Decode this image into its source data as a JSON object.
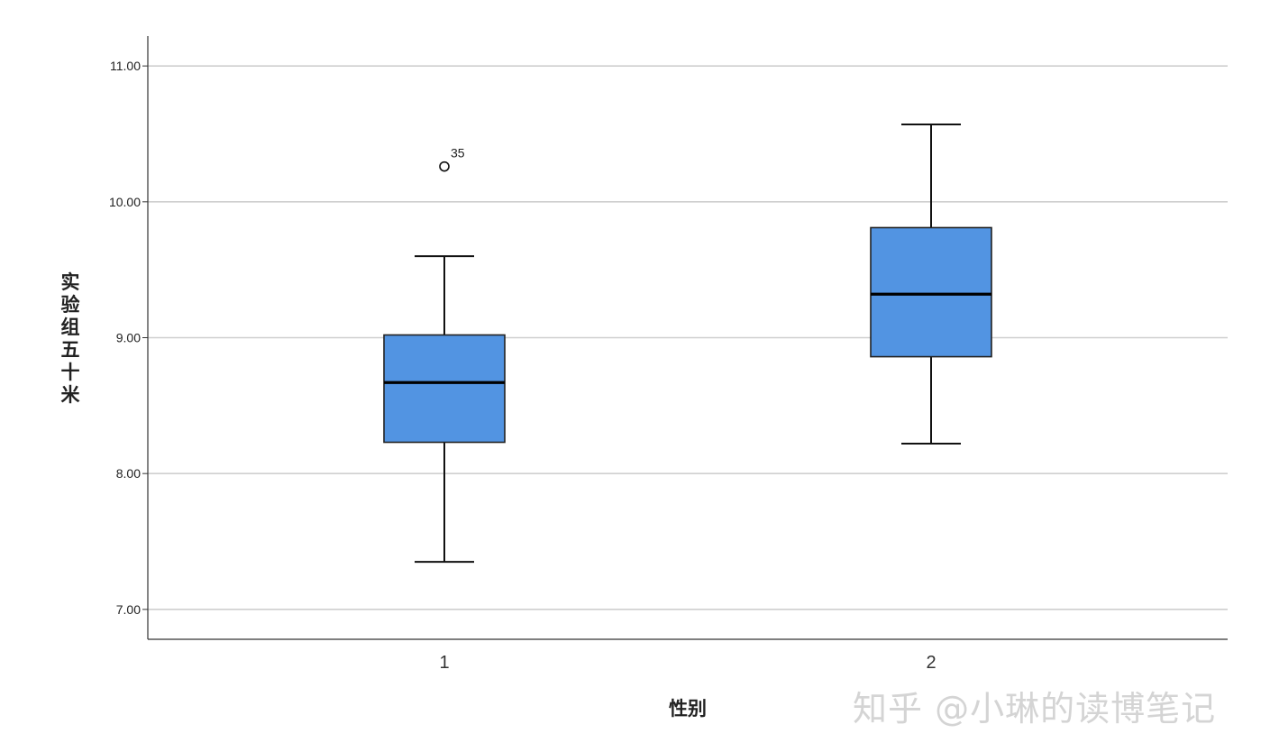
{
  "chart_data": {
    "type": "box",
    "xlabel": "性别",
    "ylabel": "实验组五十米",
    "ylim": [
      6.78,
      11.22
    ],
    "yticks": [
      7.0,
      8.0,
      9.0,
      10.0,
      11.0
    ],
    "ytick_labels": [
      "7.00",
      "8.00",
      "9.00",
      "10.00",
      "11.00"
    ],
    "categories": [
      "1",
      "2"
    ],
    "grid": "horizontal",
    "box_color": "#5294E2",
    "boxes": [
      {
        "category": "1",
        "whisker_low": 7.35,
        "q1": 8.23,
        "median": 8.67,
        "q3": 9.02,
        "whisker_high": 9.6,
        "outliers": [
          {
            "value": 10.26,
            "label": "35"
          }
        ]
      },
      {
        "category": "2",
        "whisker_low": 8.22,
        "q1": 8.86,
        "median": 9.32,
        "q3": 9.81,
        "whisker_high": 10.57,
        "outliers": []
      }
    ]
  },
  "watermark": "知乎 @小琳的读博笔记"
}
